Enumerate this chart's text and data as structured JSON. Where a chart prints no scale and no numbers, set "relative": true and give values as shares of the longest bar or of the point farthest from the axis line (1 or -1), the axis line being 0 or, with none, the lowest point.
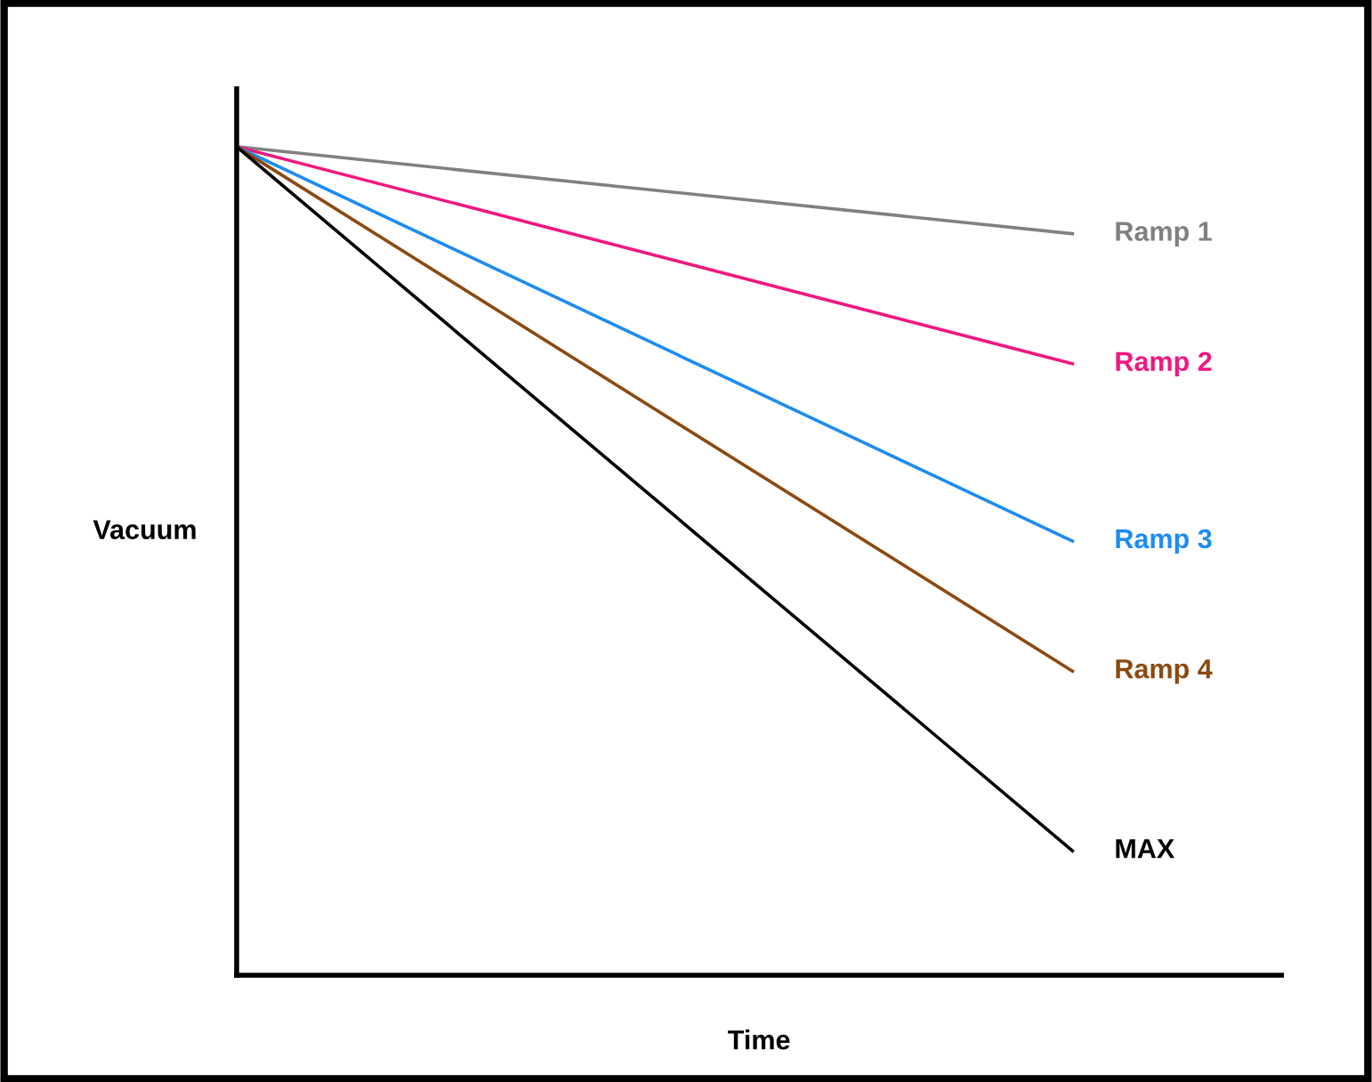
{
  "chart_data": {
    "type": "line",
    "relative": true,
    "xlabel": "Time",
    "ylabel": "Vacuum",
    "categories": [
      null,
      null
    ],
    "series": [
      {
        "name": "Ramp 1",
        "color": "#808080",
        "values": [
          1,
          0.895
        ]
      },
      {
        "name": "Ramp 2",
        "color": "#f0187f",
        "values": [
          1,
          0.738
        ]
      },
      {
        "name": "Ramp 3",
        "color": "#1e8cf0",
        "values": [
          1,
          0.524
        ]
      },
      {
        "name": "Ramp 4",
        "color": "#8b4a10",
        "values": [
          1,
          0.367
        ]
      },
      {
        "name": "MAX",
        "color": "#000000",
        "values": [
          1,
          0.15
        ]
      }
    ],
    "grid": false,
    "legend": false,
    "tick_labels": false,
    "marker": "none",
    "line_style": "solid"
  }
}
